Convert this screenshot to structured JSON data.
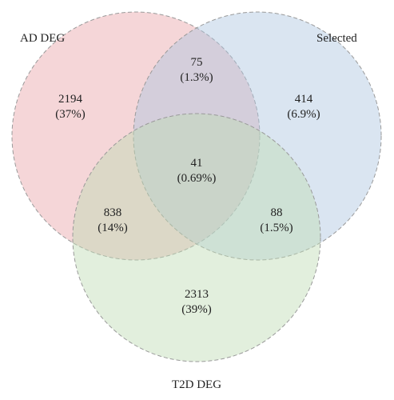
{
  "sets": [
    {
      "key": "ad",
      "label": "AD DEG",
      "fill": "#e8a3a8",
      "stroke": "#9a9a9a"
    },
    {
      "key": "selected",
      "label": "Selected",
      "fill": "#aec6e0",
      "stroke": "#9a9a9a"
    },
    {
      "key": "t2d",
      "label": "T2D DEG",
      "fill": "#bfdcb3",
      "stroke": "#9a9a9a"
    }
  ],
  "regions": {
    "ad_only": {
      "count": "2194",
      "percent": "(37%)"
    },
    "ad_selected": {
      "count": "75",
      "percent": "(1.3%)"
    },
    "selected_only": {
      "count": "414",
      "percent": "(6.9%)"
    },
    "all_three": {
      "count": "41",
      "percent": "(0.69%)"
    },
    "ad_t2d": {
      "count": "838",
      "percent": "(14%)"
    },
    "selected_t2d": {
      "count": "88",
      "percent": "(1.5%)"
    },
    "t2d_only": {
      "count": "2313",
      "percent": "(39%)"
    }
  }
}
